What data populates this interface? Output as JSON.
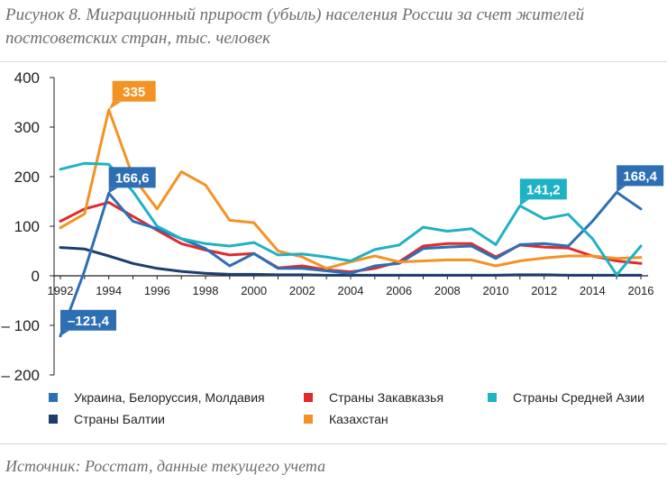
{
  "title": "Рисунок 8. Миграционный прирост (убыль) населения России за счет жителей постсоветских стран, тыс. человек",
  "source": "Источник: Росстат, данные текущего учета",
  "chart_data": {
    "type": "line",
    "title": "Рисунок 8. Миграционный прирост (убыль) населения России за счет жителей постсоветских стран, тыс. человек",
    "ylim": [
      -200,
      400
    ],
    "xlim": [
      1992,
      2016
    ],
    "yticks": [
      400,
      300,
      200,
      100,
      0,
      -100,
      -200
    ],
    "yticks_labels": [
      "400",
      "300",
      "200",
      "100",
      "0",
      "– 100",
      "– 200"
    ],
    "xticks": [
      1992,
      1994,
      1996,
      1998,
      2000,
      2002,
      2004,
      2006,
      2008,
      2010,
      2012,
      2014,
      2016
    ],
    "grid": false,
    "legend_position": "bottom",
    "x": [
      1992,
      1993,
      1994,
      1995,
      1996,
      1997,
      1998,
      1999,
      2000,
      2001,
      2002,
      2003,
      2004,
      2005,
      2006,
      2007,
      2008,
      2009,
      2010,
      2011,
      2012,
      2013,
      2014,
      2015,
      2016
    ],
    "series": [
      {
        "name": "Украина, Белоруссия, Молдавия",
        "color": "#2e6fb4",
        "values": [
          -121.4,
          10,
          166.6,
          110,
          95,
          75,
          55,
          20,
          45,
          15,
          15,
          10,
          5,
          20,
          25,
          55,
          58,
          60,
          35,
          63,
          65,
          60,
          110,
          168.4,
          135
        ]
      },
      {
        "name": "Страны Балтии",
        "color": "#1d3d6e",
        "values": [
          57,
          54,
          40,
          25,
          15,
          9,
          5,
          3,
          3,
          2,
          2,
          1,
          1,
          1,
          1,
          1,
          1,
          1,
          1,
          2,
          2,
          1,
          1,
          1,
          1
        ]
      },
      {
        "name": "Страны Закавказья",
        "color": "#e02a2e",
        "values": [
          110,
          135,
          148,
          120,
          92,
          65,
          52,
          42,
          45,
          16,
          20,
          12,
          8,
          15,
          28,
          60,
          65,
          65,
          38,
          62,
          58,
          56,
          40,
          30,
          25
        ]
      },
      {
        "name": "Казахстан",
        "color": "#f39324",
        "values": [
          97,
          125,
          335,
          200,
          135,
          210,
          183,
          112,
          107,
          50,
          38,
          15,
          28,
          40,
          28,
          30,
          32,
          32,
          20,
          30,
          36,
          40,
          40,
          35,
          37
        ]
      },
      {
        "name": "Страны Средней Азии",
        "color": "#1fb2c4",
        "values": [
          215,
          227,
          225,
          170,
          100,
          75,
          65,
          60,
          67,
          42,
          44,
          38,
          30,
          53,
          62,
          98,
          90,
          95,
          63,
          141.2,
          115,
          124,
          75,
          2,
          60
        ]
      }
    ],
    "legend_order": [
      "Украина, Белоруссия, Молдавия",
      "Страны Закавказья",
      "Страны Средней Азии",
      "Страны Балтии",
      "Казахстан"
    ],
    "annotations": [
      {
        "text": "335",
        "series": "Казахстан",
        "x": 1994,
        "y": 335
      },
      {
        "text": "166,6",
        "series": "Украина, Белоруссия, Молдавия",
        "x": 1994,
        "y": 166.6
      },
      {
        "text": "–121,4",
        "series": "Украина, Белоруссия, Молдавия",
        "x": 1992,
        "y": -121.4
      },
      {
        "text": "141,2",
        "series": "Страны Средней Азии",
        "x": 2011,
        "y": 141.2
      },
      {
        "text": "168,4",
        "series": "Украина, Белоруссия, Молдавия",
        "x": 2015,
        "y": 168.4
      }
    ]
  }
}
